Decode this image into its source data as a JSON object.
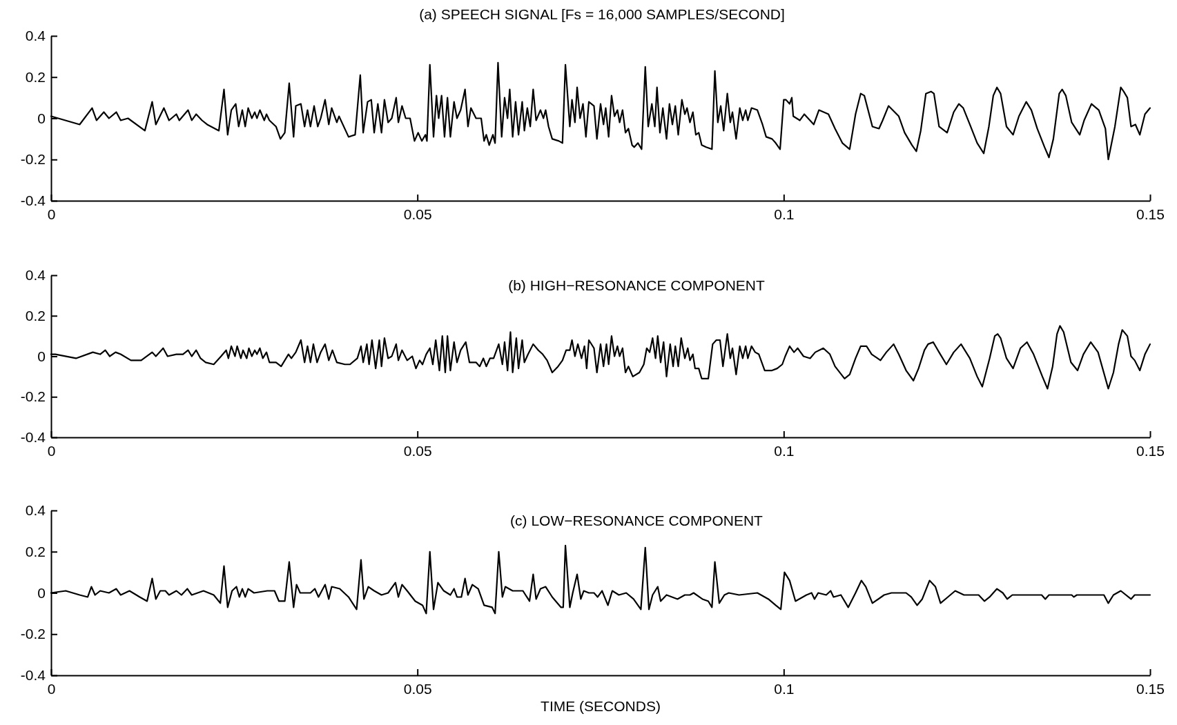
{
  "chart_data": [
    {
      "type": "line",
      "title": "(a) SPEECH SIGNAL [Fs = 16,000 SAMPLES/SECOND]",
      "xlim": [
        0,
        0.15
      ],
      "ylim": [
        -0.4,
        0.4
      ],
      "xticks": [
        0,
        0.05,
        0.1,
        0.15
      ],
      "yticks": [
        -0.4,
        -0.2,
        0,
        0.2,
        0.4
      ],
      "x": [
        0,
        0.0039,
        0.0056,
        0.0062,
        0.0072,
        0.0079,
        0.0089,
        0.0095,
        0.0105,
        0.0128,
        0.0138,
        0.0143,
        0.0154,
        0.0161,
        0.0171,
        0.0175,
        0.0187,
        0.0192,
        0.0198,
        0.0206,
        0.0213,
        0.0229,
        0.0236,
        0.0241,
        0.0246,
        0.0252,
        0.0256,
        0.0261,
        0.0265,
        0.0269,
        0.0274,
        0.0278,
        0.0281,
        0.0285,
        0.0291,
        0.0294,
        0.0298,
        0.0307,
        0.0313,
        0.0319,
        0.0325,
        0.0331,
        0.0334,
        0.0341,
        0.0346,
        0.035,
        0.0354,
        0.0359,
        0.0364,
        0.0368,
        0.0374,
        0.0379,
        0.0383,
        0.039,
        0.0393,
        0.0406,
        0.0415,
        0.0422,
        0.0426,
        0.0432,
        0.0437,
        0.0441,
        0.0446,
        0.0451,
        0.0455,
        0.046,
        0.0465,
        0.0471,
        0.0474,
        0.0479,
        0.0484,
        0.049,
        0.0496,
        0.0501,
        0.0506,
        0.0511,
        0.0513,
        0.0517,
        0.0522,
        0.0526,
        0.0529,
        0.0533,
        0.0537,
        0.0541,
        0.0545,
        0.055,
        0.0554,
        0.0559,
        0.0565,
        0.0569,
        0.0573,
        0.058,
        0.0587,
        0.0591,
        0.0594,
        0.0598,
        0.0603,
        0.0606,
        0.061,
        0.0615,
        0.0619,
        0.0623,
        0.0626,
        0.063,
        0.0634,
        0.0638,
        0.0643,
        0.0646,
        0.065,
        0.0654,
        0.0658,
        0.0662,
        0.0668,
        0.0672,
        0.0675,
        0.0679,
        0.0684,
        0.0693,
        0.0698,
        0.0702,
        0.0708,
        0.0711,
        0.0715,
        0.0718,
        0.0722,
        0.0726,
        0.073,
        0.0734,
        0.0741,
        0.0745,
        0.075,
        0.0754,
        0.0757,
        0.0761,
        0.0765,
        0.0769,
        0.0773,
        0.0776,
        0.078,
        0.0784,
        0.0788,
        0.0793,
        0.0796,
        0.0801,
        0.0806,
        0.0811,
        0.0815,
        0.082,
        0.0824,
        0.0827,
        0.0831,
        0.0835,
        0.084,
        0.0844,
        0.0848,
        0.0852,
        0.0856,
        0.0861,
        0.0865,
        0.0868,
        0.0872,
        0.0876,
        0.088,
        0.0884,
        0.0888,
        0.0894,
        0.0902,
        0.0906,
        0.091,
        0.0914,
        0.0918,
        0.0923,
        0.0927,
        0.093,
        0.0935,
        0.094,
        0.0944,
        0.0948,
        0.0951,
        0.0956,
        0.0964,
        0.0971,
        0.0976,
        0.0984,
        0.0989,
        0.0995,
        0.1,
        0.1003,
        0.1008,
        0.1011,
        0.1013,
        0.1022,
        0.1028,
        0.1041,
        0.1048,
        0.1061,
        0.107,
        0.108,
        0.109,
        0.1098,
        0.1105,
        0.111,
        0.1121,
        0.113,
        0.1135,
        0.1143,
        0.1157,
        0.1165,
        0.1175,
        0.1181,
        0.1187,
        0.1194,
        0.1201,
        0.1205,
        0.1212,
        0.1223,
        0.1232,
        0.1239,
        0.1245,
        0.1254,
        0.1264,
        0.1273,
        0.128,
        0.1286,
        0.1291,
        0.1296,
        0.1304,
        0.1313,
        0.1321,
        0.1331,
        0.1338,
        0.1346,
        0.1356,
        0.1362,
        0.1368,
        0.1376,
        0.138,
        0.1385,
        0.1393,
        0.1404,
        0.141,
        0.142,
        0.143,
        0.1439,
        0.1443,
        0.1452,
        0.146,
        0.1464,
        0.1469,
        0.1474,
        0.148,
        0.1486,
        0.1493,
        0.15
      ],
      "series": [
        {
          "color": "#000000",
          "values": [
            0.01,
            -0.03,
            0.05,
            -0.01,
            0.03,
            0,
            0.03,
            -0.01,
            0,
            -0.06,
            0.08,
            -0.03,
            0.05,
            -0.01,
            0.02,
            -0.01,
            0.04,
            -0.01,
            0.02,
            -0.01,
            -0.03,
            -0.06,
            0.14,
            -0.08,
            0.04,
            0.07,
            -0.04,
            0.04,
            -0.04,
            0.05,
            0,
            0.03,
            0,
            0.04,
            -0.01,
            0.02,
            -0.01,
            -0.04,
            -0.1,
            -0.07,
            0.17,
            -0.09,
            0.06,
            0.07,
            -0.04,
            0.04,
            -0.04,
            0.06,
            -0.04,
            0,
            0.09,
            -0.03,
            0.05,
            -0.02,
            0.01,
            -0.09,
            -0.08,
            0.21,
            -0.07,
            0.08,
            0.09,
            -0.07,
            0.07,
            -0.07,
            0.09,
            -0.02,
            0,
            0.1,
            -0.02,
            0.06,
            0,
            0,
            -0.11,
            -0.07,
            -0.11,
            -0.08,
            -0.11,
            0.26,
            -0.09,
            0.11,
            0,
            0.11,
            -0.09,
            0.1,
            -0.09,
            0.08,
            0,
            0.04,
            0.14,
            -0.04,
            0.05,
            0,
            0,
            -0.11,
            -0.08,
            -0.13,
            -0.08,
            -0.12,
            0.27,
            -0.09,
            0.1,
            0,
            0.14,
            -0.09,
            0.08,
            -0.08,
            0.08,
            -0.06,
            0.05,
            -0.04,
            0.14,
            -0.01,
            0.04,
            0,
            0.04,
            -0.04,
            -0.1,
            -0.11,
            -0.12,
            0.26,
            -0.04,
            0.09,
            -0.02,
            0.15,
            0,
            0.07,
            -0.09,
            0.08,
            0.06,
            -0.1,
            0.07,
            -0.03,
            0.05,
            -0.09,
            0.11,
            0.01,
            0.04,
            -0.02,
            0.04,
            -0.07,
            -0.05,
            -0.13,
            -0.14,
            -0.12,
            -0.15,
            0.25,
            -0.04,
            0.07,
            -0.04,
            0.15,
            -0.07,
            0.05,
            -0.1,
            0.07,
            -0.03,
            0.06,
            -0.08,
            0.09,
            0.02,
            0.05,
            -0.02,
            0.03,
            -0.08,
            -0.07,
            -0.13,
            -0.14,
            -0.15,
            0.23,
            -0.02,
            0.06,
            -0.06,
            0.12,
            -0.02,
            0.03,
            -0.1,
            0.05,
            -0.01,
            0.04,
            -0.01,
            0.05,
            0.04,
            -0.03,
            -0.09,
            -0.1,
            -0.12,
            -0.15,
            0.09,
            0.09,
            0.07,
            0.1,
            0.01,
            -0.01,
            0.02,
            -0.03,
            0.04,
            0.02,
            -0.05,
            -0.12,
            -0.15,
            0.02,
            0.12,
            0.11,
            -0.04,
            -0.05,
            -0.01,
            0.06,
            0.01,
            -0.07,
            -0.13,
            -0.16,
            -0.06,
            0.12,
            0.13,
            0.12,
            -0.04,
            -0.07,
            0.03,
            0.07,
            0.05,
            -0.03,
            -0.12,
            -0.17,
            -0.04,
            0.11,
            0.15,
            0.12,
            -0.04,
            -0.08,
            0.01,
            0.08,
            0.04,
            -0.05,
            -0.14,
            -0.19,
            -0.1,
            0.12,
            0.14,
            0.11,
            -0.02,
            -0.08,
            -0.01,
            0.07,
            0.04,
            -0.05,
            -0.2,
            -0.04,
            0.15,
            0.13,
            0.1,
            -0.04,
            -0.03,
            -0.08,
            0.02,
            0.05
          ]
        }
      ]
    },
    {
      "type": "line",
      "title": "(b) HIGH−RESONANCE COMPONENT",
      "xlim": [
        0,
        0.15
      ],
      "ylim": [
        -0.4,
        0.4
      ],
      "xticks": [
        0,
        0.05,
        0.1,
        0.15
      ],
      "yticks": [
        -0.4,
        -0.2,
        0,
        0.2,
        0.4
      ],
      "x": [
        0,
        0.0006,
        0.0034,
        0.0057,
        0.0067,
        0.0074,
        0.008,
        0.0088,
        0.0095,
        0.0109,
        0.0123,
        0.0138,
        0.0143,
        0.0153,
        0.0159,
        0.0171,
        0.018,
        0.0187,
        0.0192,
        0.0198,
        0.0204,
        0.0211,
        0.0222,
        0.0232,
        0.0239,
        0.0242,
        0.0246,
        0.0251,
        0.0254,
        0.0259,
        0.0262,
        0.0267,
        0.027,
        0.0274,
        0.0278,
        0.0281,
        0.0285,
        0.0289,
        0.0294,
        0.0298,
        0.0307,
        0.0314,
        0.0324,
        0.0328,
        0.0334,
        0.0341,
        0.0346,
        0.035,
        0.0354,
        0.0358,
        0.0363,
        0.0368,
        0.0374,
        0.0379,
        0.0384,
        0.039,
        0.0401,
        0.0408,
        0.0418,
        0.0423,
        0.0426,
        0.0431,
        0.0434,
        0.0438,
        0.0443,
        0.0448,
        0.0451,
        0.0455,
        0.046,
        0.0465,
        0.0471,
        0.0474,
        0.0479,
        0.0486,
        0.0493,
        0.0498,
        0.0503,
        0.0507,
        0.0512,
        0.0517,
        0.0521,
        0.0525,
        0.053,
        0.0534,
        0.0538,
        0.0541,
        0.0545,
        0.055,
        0.0554,
        0.0559,
        0.0566,
        0.0571,
        0.058,
        0.0585,
        0.059,
        0.0594,
        0.0599,
        0.0604,
        0.0611,
        0.0616,
        0.0619,
        0.0623,
        0.0627,
        0.063,
        0.0635,
        0.0638,
        0.0643,
        0.0646,
        0.0651,
        0.0658,
        0.0665,
        0.0671,
        0.0677,
        0.0684,
        0.0692,
        0.0698,
        0.0703,
        0.0708,
        0.0711,
        0.0715,
        0.0719,
        0.0724,
        0.0728,
        0.0731,
        0.0734,
        0.0741,
        0.0745,
        0.075,
        0.0754,
        0.0758,
        0.0761,
        0.0765,
        0.0769,
        0.0773,
        0.0776,
        0.078,
        0.0784,
        0.0788,
        0.0794,
        0.0803,
        0.0809,
        0.0813,
        0.0817,
        0.0821,
        0.0825,
        0.0828,
        0.0832,
        0.0836,
        0.084,
        0.0845,
        0.0849,
        0.0852,
        0.0856,
        0.086,
        0.0865,
        0.0869,
        0.0872,
        0.0876,
        0.0879,
        0.0884,
        0.0888,
        0.0897,
        0.0903,
        0.0908,
        0.0913,
        0.0917,
        0.0923,
        0.0927,
        0.093,
        0.0935,
        0.094,
        0.0944,
        0.0948,
        0.0951,
        0.0956,
        0.0961,
        0.0966,
        0.0974,
        0.0984,
        0.0991,
        0.0998,
        0.1002,
        0.1008,
        0.1014,
        0.1019,
        0.1027,
        0.1036,
        0.1043,
        0.1054,
        0.1063,
        0.107,
        0.1083,
        0.109,
        0.1098,
        0.1105,
        0.1113,
        0.112,
        0.1128,
        0.1132,
        0.114,
        0.115,
        0.1157,
        0.1167,
        0.1177,
        0.1184,
        0.1192,
        0.1197,
        0.1204,
        0.1212,
        0.1222,
        0.1232,
        0.1242,
        0.1254,
        0.1264,
        0.1271,
        0.1281,
        0.1288,
        0.1292,
        0.1296,
        0.1304,
        0.1313,
        0.1323,
        0.1332,
        0.1341,
        0.1353,
        0.136,
        0.1367,
        0.1373,
        0.1377,
        0.1382,
        0.1392,
        0.1401,
        0.1409,
        0.1419,
        0.1429,
        0.1443,
        0.145,
        0.1457,
        0.1462,
        0.1469,
        0.1474,
        0.1479,
        0.1486,
        0.1493,
        0.15
      ],
      "series": [
        {
          "color": "#000000",
          "values": [
            0.01,
            0.01,
            -0.01,
            0.02,
            0.01,
            0.03,
            0,
            0.02,
            0.01,
            -0.02,
            -0.02,
            0.02,
            0,
            0.04,
            0,
            0.01,
            0.01,
            0.03,
            0,
            0.03,
            -0.01,
            -0.03,
            -0.04,
            0,
            0.03,
            -0.01,
            0.05,
            0,
            0.05,
            -0.01,
            0.03,
            -0.01,
            0.04,
            0,
            0.03,
            0.01,
            0.04,
            -0.01,
            0.02,
            -0.03,
            -0.03,
            -0.05,
            0.01,
            -0.01,
            0.02,
            0.08,
            -0.03,
            0.05,
            -0.03,
            0.06,
            -0.03,
            0.02,
            0.06,
            -0.02,
            0.03,
            -0.03,
            -0.04,
            -0.04,
            -0.01,
            0.05,
            -0.03,
            0.06,
            -0.04,
            0.08,
            -0.06,
            0.08,
            -0.05,
            0.09,
            -0.01,
            0,
            0.06,
            -0.02,
            0.03,
            -0.02,
            0,
            -0.06,
            -0.02,
            -0.04,
            0.01,
            0.04,
            -0.04,
            0.08,
            -0.07,
            0.1,
            -0.08,
            0.1,
            -0.07,
            0.07,
            -0.03,
            0.03,
            0.07,
            -0.03,
            -0.03,
            -0.05,
            -0.01,
            -0.05,
            -0.01,
            -0.01,
            0.06,
            -0.04,
            0.07,
            -0.07,
            0.12,
            -0.08,
            0.09,
            -0.06,
            0.08,
            -0.03,
            0.01,
            0.06,
            0.03,
            0.01,
            -0.02,
            -0.08,
            -0.05,
            -0.02,
            0.03,
            0.03,
            0.08,
            0,
            0.06,
            -0.01,
            0.05,
            -0.06,
            0.08,
            0.04,
            -0.08,
            0.06,
            -0.05,
            0.06,
            -0.04,
            0.1,
            0,
            0.05,
            0,
            0.04,
            -0.08,
            -0.05,
            -0.1,
            -0.08,
            -0.04,
            0.04,
            0.02,
            0.09,
            -0.01,
            0.1,
            -0.03,
            0.07,
            -0.1,
            0.06,
            -0.05,
            0.05,
            -0.05,
            0.09,
            -0.01,
            0.04,
            -0.02,
            0.01,
            -0.06,
            -0.06,
            -0.11,
            -0.11,
            0.06,
            0.08,
            0.08,
            -0.05,
            0.11,
            -0.01,
            0.04,
            -0.09,
            0.05,
            -0.01,
            0.05,
            -0.01,
            0.05,
            0.02,
            0.01,
            -0.07,
            -0.07,
            -0.06,
            -0.04,
            0,
            0.05,
            0.02,
            0.04,
            0,
            -0.01,
            0.02,
            0.04,
            0.01,
            -0.05,
            -0.11,
            -0.09,
            -0.01,
            0.05,
            0.05,
            0.01,
            -0.01,
            -0.02,
            0.02,
            0.06,
            0.01,
            -0.07,
            -0.12,
            -0.06,
            0.03,
            0.06,
            0.07,
            0.02,
            -0.04,
            0.02,
            0.06,
            -0.01,
            -0.1,
            -0.15,
            -0.01,
            0.1,
            0.11,
            0.09,
            -0.01,
            -0.06,
            0.04,
            0.07,
            0.01,
            -0.1,
            -0.16,
            -0.05,
            0.11,
            0.15,
            0.12,
            -0.03,
            -0.07,
            0.01,
            0.07,
            0.02,
            -0.16,
            -0.08,
            0.06,
            0.13,
            0.1,
            0,
            -0.02,
            -0.07,
            0.01,
            0.06
          ]
        }
      ]
    },
    {
      "type": "line",
      "title": "(c) LOW−RESONANCE COMPONENT",
      "xlabel": "TIME (SECONDS)",
      "xlim": [
        0,
        0.15
      ],
      "ylim": [
        -0.4,
        0.4
      ],
      "xticks": [
        0,
        0.05,
        0.1,
        0.15
      ],
      "yticks": [
        -0.4,
        -0.2,
        0,
        0.2,
        0.4
      ],
      "x": [
        0,
        0.002,
        0.0039,
        0.005,
        0.0055,
        0.006,
        0.0067,
        0.0079,
        0.0089,
        0.0095,
        0.0107,
        0.0121,
        0.0131,
        0.0138,
        0.0143,
        0.0149,
        0.0156,
        0.0161,
        0.0171,
        0.0178,
        0.0186,
        0.0192,
        0.0208,
        0.0222,
        0.0231,
        0.0236,
        0.0241,
        0.0247,
        0.0253,
        0.0257,
        0.0261,
        0.0265,
        0.0269,
        0.0277,
        0.0295,
        0.0305,
        0.0311,
        0.0319,
        0.0325,
        0.0331,
        0.0335,
        0.034,
        0.0354,
        0.036,
        0.0365,
        0.0374,
        0.0379,
        0.0383,
        0.0394,
        0.0406,
        0.0417,
        0.0423,
        0.0427,
        0.0433,
        0.0441,
        0.0451,
        0.046,
        0.047,
        0.0474,
        0.0479,
        0.0486,
        0.0497,
        0.0507,
        0.0512,
        0.0517,
        0.0522,
        0.0528,
        0.0536,
        0.0545,
        0.055,
        0.0554,
        0.056,
        0.0565,
        0.0569,
        0.0575,
        0.0583,
        0.0591,
        0.0602,
        0.0606,
        0.0611,
        0.0616,
        0.062,
        0.063,
        0.0644,
        0.0653,
        0.0658,
        0.0662,
        0.0668,
        0.0675,
        0.0684,
        0.0696,
        0.0699,
        0.0702,
        0.0708,
        0.0712,
        0.0718,
        0.0723,
        0.0727,
        0.0734,
        0.0741,
        0.0746,
        0.0752,
        0.076,
        0.0766,
        0.0775,
        0.0785,
        0.0795,
        0.0805,
        0.0811,
        0.0816,
        0.0821,
        0.0828,
        0.0832,
        0.084,
        0.0855,
        0.0865,
        0.0872,
        0.0877,
        0.0889,
        0.0897,
        0.0902,
        0.0906,
        0.0912,
        0.0919,
        0.0925,
        0.0939,
        0.0964,
        0.0979,
        0.0989,
        0.0996,
        0.1001,
        0.1008,
        0.1016,
        0.1031,
        0.1038,
        0.1042,
        0.1047,
        0.1058,
        0.1064,
        0.1068,
        0.1078,
        0.1088,
        0.1098,
        0.1106,
        0.1112,
        0.1121,
        0.1137,
        0.1147,
        0.1167,
        0.1174,
        0.1182,
        0.1189,
        0.1199,
        0.1207,
        0.1214,
        0.1224,
        0.1234,
        0.1246,
        0.1266,
        0.1274,
        0.1281,
        0.1291,
        0.1299,
        0.1305,
        0.1312,
        0.1352,
        0.1357,
        0.1362,
        0.1393,
        0.1396,
        0.14,
        0.1437,
        0.1443,
        0.145,
        0.146,
        0.1474,
        0.1479,
        0.15
      ],
      "series": [
        {
          "color": "#000000",
          "values": [
            0,
            0.01,
            -0.01,
            -0.02,
            0.03,
            -0.01,
            0.01,
            0,
            0.02,
            -0.01,
            0.01,
            -0.02,
            -0.04,
            0.07,
            -0.03,
            0.01,
            0.01,
            -0.01,
            0.01,
            -0.01,
            0.02,
            -0.01,
            0.01,
            -0.01,
            -0.05,
            0.13,
            -0.07,
            0.01,
            0.03,
            -0.02,
            0.02,
            -0.02,
            0.02,
            0,
            0.01,
            0.01,
            -0.04,
            -0.04,
            0.15,
            -0.07,
            0.04,
            0,
            0,
            0.02,
            -0.02,
            0.04,
            -0.03,
            0.03,
            0.02,
            -0.02,
            -0.08,
            0.16,
            -0.03,
            0.03,
            0.01,
            -0.01,
            0,
            0.05,
            -0.02,
            0.04,
            0.01,
            -0.04,
            -0.06,
            -0.1,
            0.2,
            -0.08,
            0.05,
            0.01,
            -0.01,
            0.02,
            -0.02,
            -0.02,
            0.07,
            -0.01,
            0.04,
            0.02,
            -0.06,
            -0.07,
            -0.1,
            0.2,
            -0.02,
            0.03,
            0.01,
            0.01,
            -0.04,
            0.09,
            -0.03,
            0.02,
            0.03,
            -0.02,
            -0.07,
            -0.07,
            0.23,
            -0.07,
            0,
            0.09,
            -0.03,
            0.01,
            0,
            0,
            -0.02,
            0.01,
            -0.06,
            0.01,
            -0.01,
            0,
            -0.03,
            -0.08,
            0.22,
            -0.08,
            -0.01,
            0.03,
            -0.04,
            -0.01,
            -0.03,
            -0.01,
            -0.01,
            0,
            -0.03,
            -0.04,
            -0.07,
            0.15,
            -0.05,
            -0.01,
            0,
            -0.01,
            0,
            -0.03,
            -0.06,
            -0.08,
            0.1,
            0.06,
            -0.04,
            -0.01,
            0,
            -0.03,
            0,
            -0.01,
            0.01,
            -0.02,
            -0.01,
            -0.07,
            0,
            0.06,
            0.03,
            -0.05,
            -0.01,
            0,
            0,
            -0.02,
            -0.06,
            -0.03,
            0.06,
            0.03,
            -0.05,
            -0.02,
            0.01,
            -0.01,
            -0.01,
            -0.04,
            -0.02,
            0.02,
            0,
            -0.03,
            -0.01,
            -0.01,
            -0.03,
            -0.01,
            -0.01,
            -0.02,
            -0.01,
            -0.01,
            -0.05,
            -0.01,
            0.01,
            -0.03,
            -0.01,
            -0.01
          ]
        }
      ]
    }
  ]
}
